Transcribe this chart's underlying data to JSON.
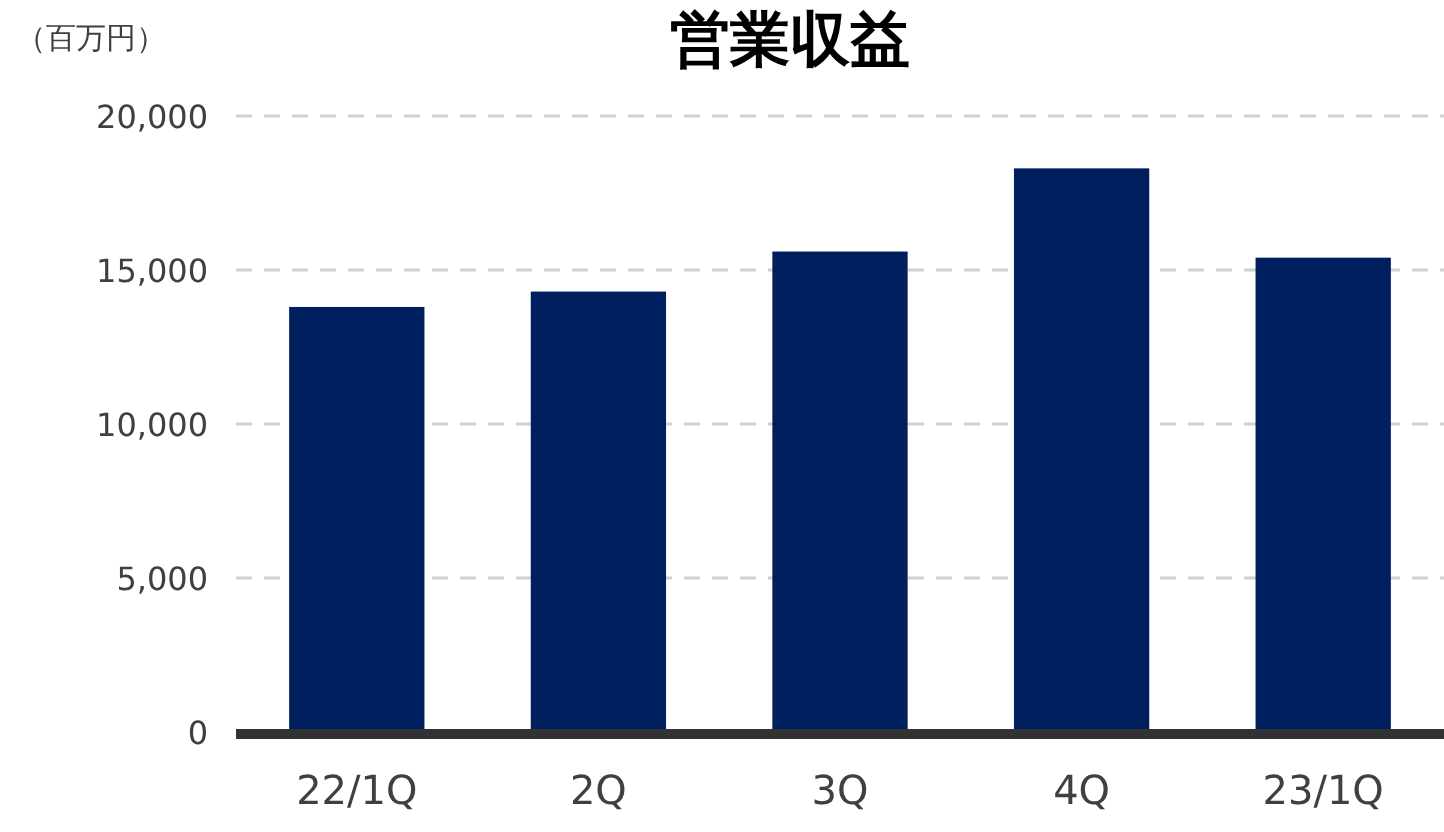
{
  "chart_data": {
    "type": "bar",
    "title": "営業収益",
    "ylabel": "（百万円）",
    "categories": [
      "22/1Q",
      "2Q",
      "3Q",
      "4Q",
      "23/1Q"
    ],
    "values": [
      13800,
      14300,
      15600,
      18300,
      15400
    ],
    "color": "#001f5f",
    "ylim": [
      0,
      20000
    ],
    "yticks": [
      {
        "value": 0,
        "label": "0"
      },
      {
        "value": 5000,
        "label": "5,000"
      },
      {
        "value": 10000,
        "label": "10,000"
      },
      {
        "value": 15000,
        "label": "15,000"
      },
      {
        "value": 20000,
        "label": "20,000"
      }
    ],
    "grid": "y"
  }
}
